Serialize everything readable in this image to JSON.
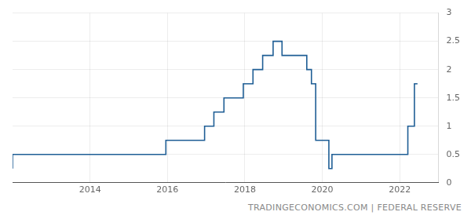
{
  "chart_data": {
    "type": "line",
    "line_style": "step",
    "color": "#1f5e95",
    "grid": true,
    "annotation": "TRADINGECONOMICS.COM | FEDERAL RESERVE",
    "x": [
      2012.0,
      2015.96,
      2016.96,
      2017.2,
      2017.46,
      2017.96,
      2018.21,
      2018.46,
      2018.73,
      2018.96,
      2019.6,
      2019.72,
      2019.83,
      2020.17,
      2020.25,
      2022.21,
      2022.38,
      2022.46
    ],
    "values": [
      0.25,
      0.5,
      0.75,
      1.0,
      1.25,
      1.5,
      1.75,
      2.0,
      2.25,
      2.5,
      2.25,
      2.0,
      1.75,
      0.75,
      0.25,
      0.5,
      1.0,
      1.75
    ],
    "xlim": [
      2012,
      2023
    ],
    "xticks": [
      2014,
      2016,
      2018,
      2020,
      2022
    ],
    "ylim": [
      0,
      3
    ],
    "yticks": [
      0,
      0.5,
      1,
      1.5,
      2,
      2.5,
      3
    ]
  }
}
